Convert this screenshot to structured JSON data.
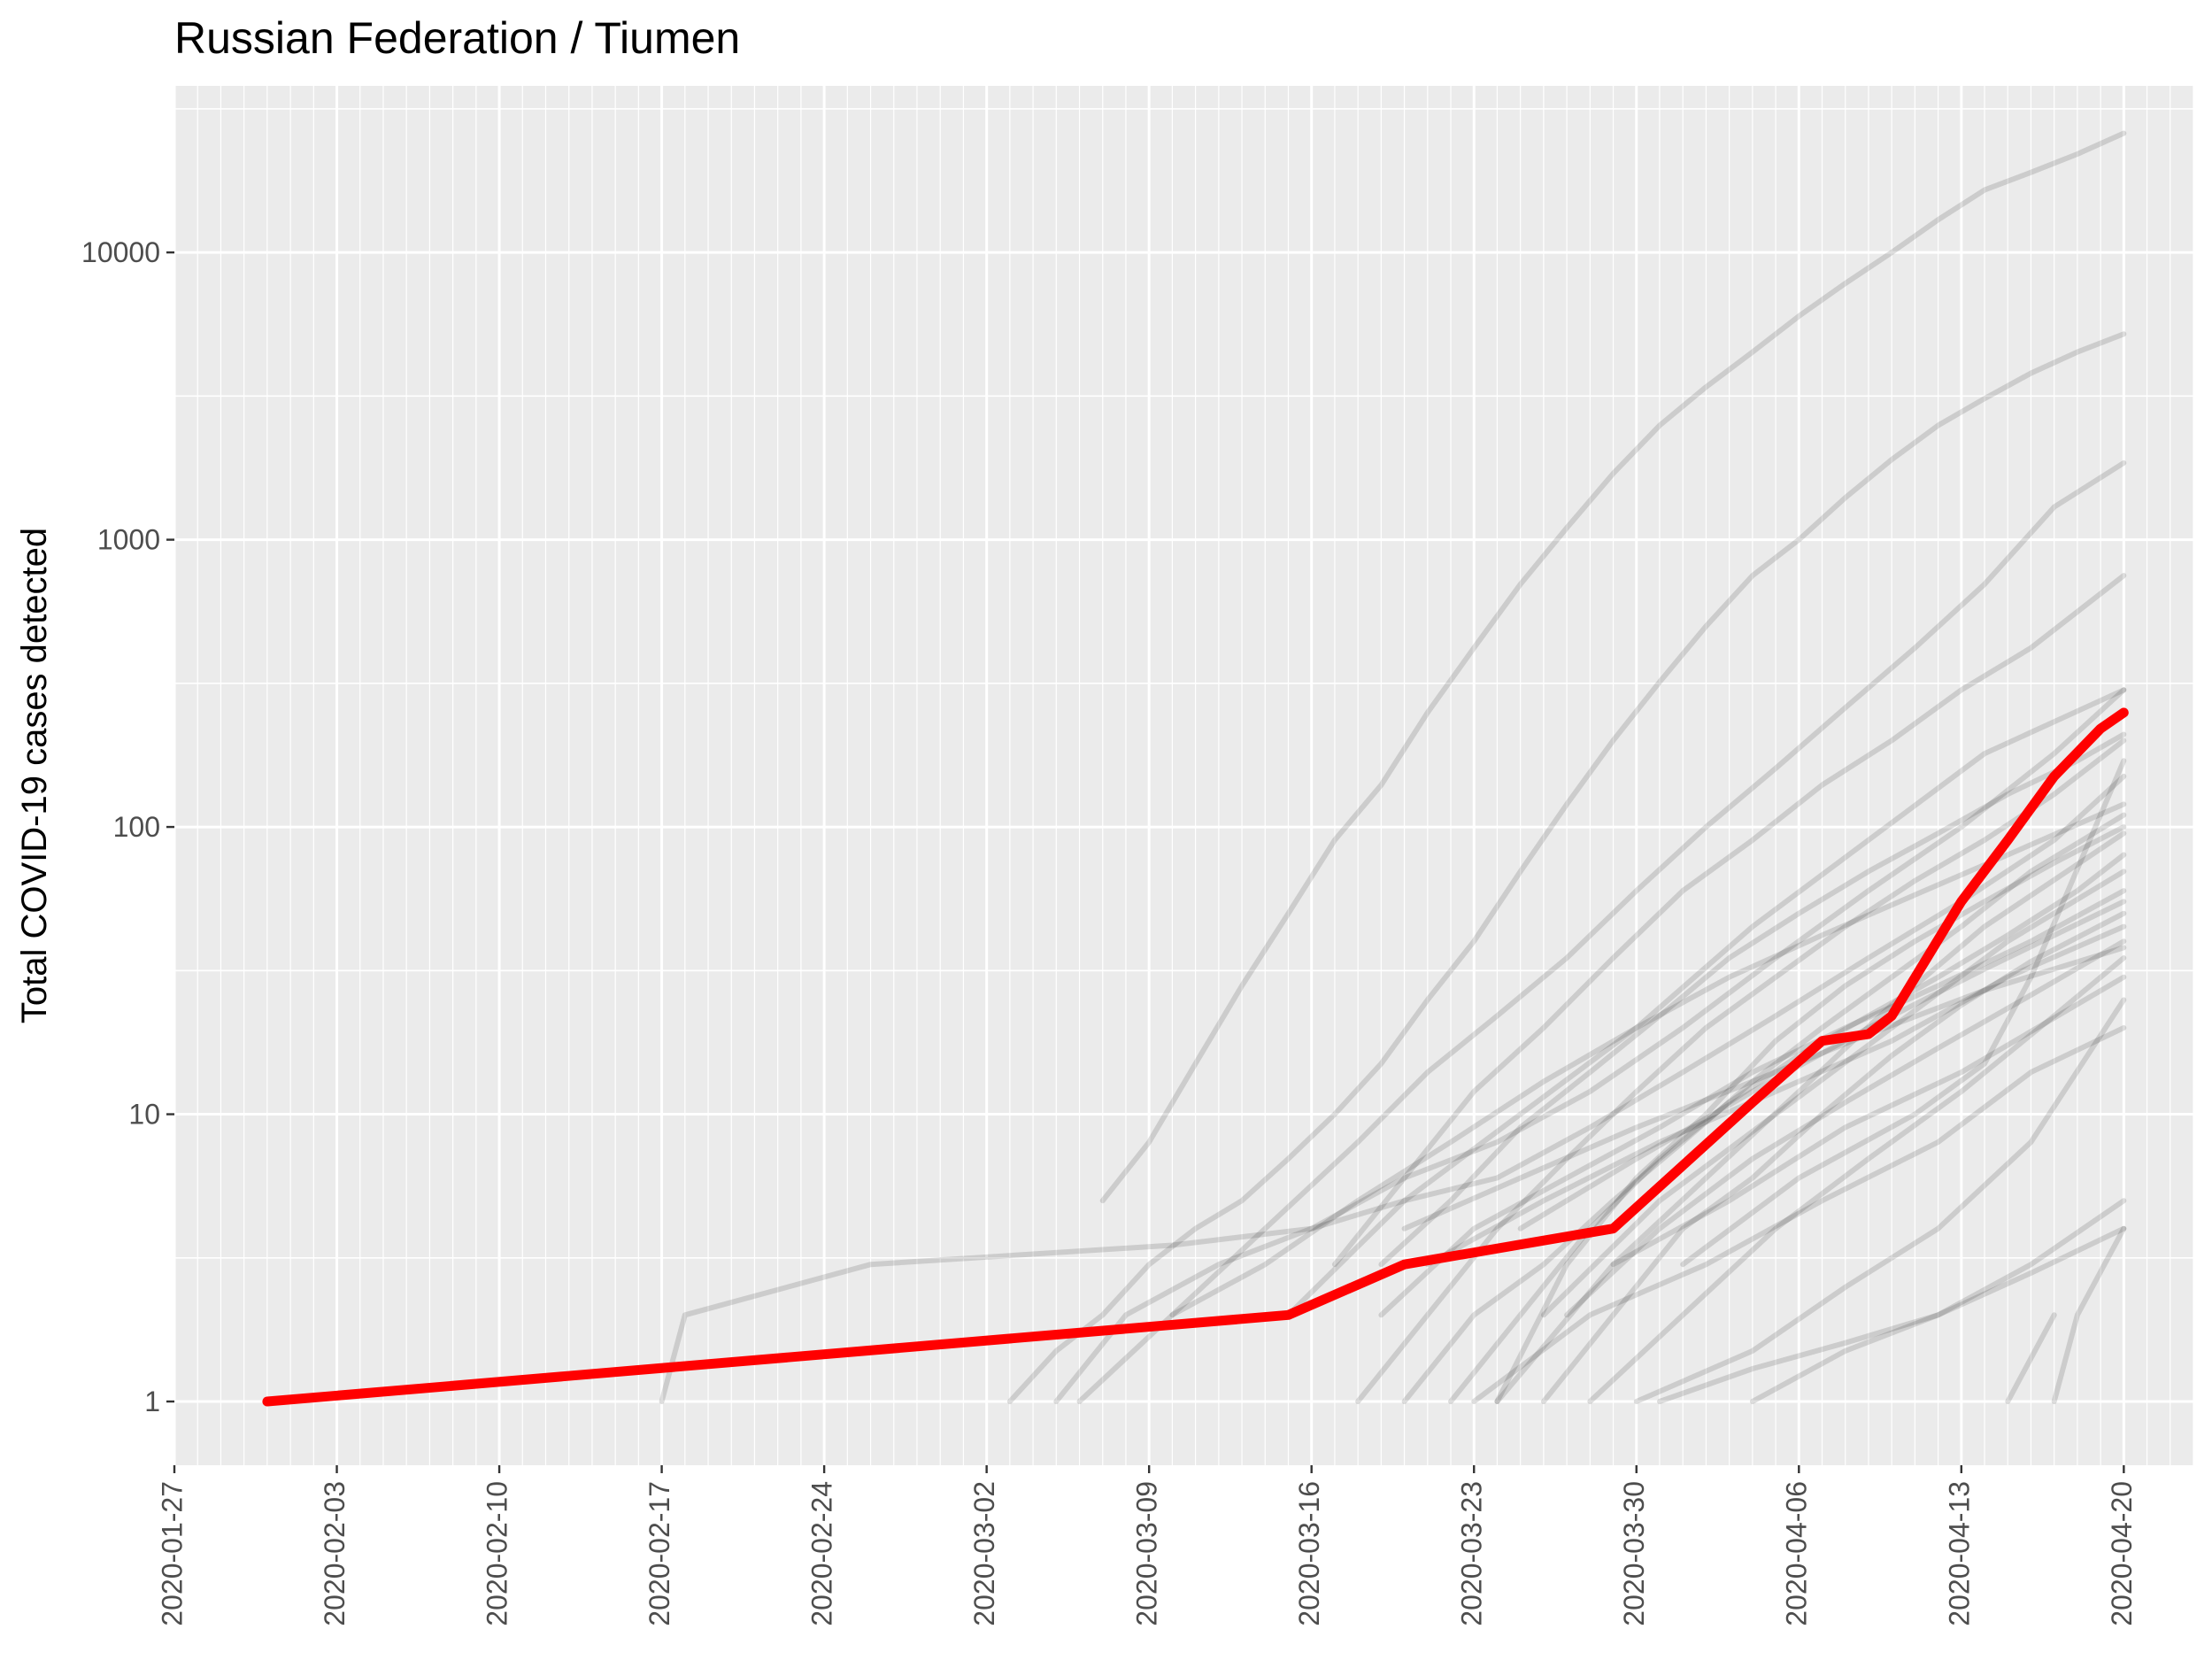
{
  "chart_data": {
    "type": "line",
    "title": "Russian Federation / Tiumen",
    "xlabel": "",
    "ylabel": "Total COVID-19 cases detected",
    "y_scale": "log10",
    "xlim": [
      "2020-01-27",
      "2020-04-23"
    ],
    "ylim": [
      0.6,
      38000
    ],
    "x_ticks": [
      "2020-01-27",
      "2020-02-03",
      "2020-02-10",
      "2020-02-17",
      "2020-02-24",
      "2020-03-02",
      "2020-03-09",
      "2020-03-16",
      "2020-03-23",
      "2020-03-30",
      "2020-04-06",
      "2020-04-13",
      "2020-04-20"
    ],
    "y_ticks": [
      1,
      10,
      100,
      1000,
      10000
    ],
    "y_tick_labels": [
      "1",
      "10",
      "100",
      "1000",
      "10000"
    ],
    "grid": true,
    "legend": "none",
    "highlight_color": "#ff0000",
    "background_color": "#ebebeb",
    "highlight_series": {
      "name": "Tiumen",
      "x": [
        "2020-01-31",
        "2020-03-15",
        "2020-03-20",
        "2020-03-29",
        "2020-04-04",
        "2020-04-07",
        "2020-04-09",
        "2020-04-10",
        "2020-04-13",
        "2020-04-15",
        "2020-04-17",
        "2020-04-19",
        "2020-04-20"
      ],
      "y": [
        1,
        2,
        3,
        4,
        11,
        18,
        19,
        22,
        55,
        90,
        150,
        220,
        250
      ]
    },
    "background_series": [
      {
        "x": [
          "2020-03-07",
          "2020-03-09",
          "2020-03-11",
          "2020-03-13",
          "2020-03-15",
          "2020-03-17",
          "2020-03-19",
          "2020-03-21",
          "2020-03-23",
          "2020-03-25",
          "2020-03-27",
          "2020-03-29",
          "2020-03-31",
          "2020-04-02",
          "2020-04-04",
          "2020-04-06",
          "2020-04-08",
          "2020-04-10",
          "2020-04-12",
          "2020-04-14",
          "2020-04-16",
          "2020-04-18",
          "2020-04-20"
        ],
        "y": [
          5,
          8,
          15,
          28,
          50,
          90,
          140,
          250,
          420,
          700,
          1100,
          1700,
          2500,
          3400,
          4500,
          6000,
          7800,
          10000,
          13000,
          16500,
          19000,
          22000,
          26000
        ]
      },
      {
        "x": [
          "2020-03-03",
          "2020-03-05",
          "2020-03-07",
          "2020-03-09",
          "2020-03-11",
          "2020-03-13",
          "2020-03-15",
          "2020-03-17",
          "2020-03-19",
          "2020-03-21",
          "2020-03-23",
          "2020-03-25",
          "2020-03-27",
          "2020-03-29",
          "2020-03-31",
          "2020-04-02",
          "2020-04-04",
          "2020-04-06",
          "2020-04-08",
          "2020-04-10",
          "2020-04-12",
          "2020-04-14",
          "2020-04-16",
          "2020-04-18",
          "2020-04-20"
        ],
        "y": [
          1,
          1.5,
          2,
          3,
          4,
          5,
          7,
          10,
          15,
          25,
          40,
          70,
          120,
          200,
          320,
          500,
          750,
          1000,
          1400,
          1900,
          2500,
          3100,
          3800,
          4500,
          5200
        ]
      },
      {
        "x": [
          "2020-03-06",
          "2020-03-10",
          "2020-03-14",
          "2020-03-18",
          "2020-03-21",
          "2020-03-24",
          "2020-03-27",
          "2020-03-30",
          "2020-04-02",
          "2020-04-05",
          "2020-04-08",
          "2020-04-11",
          "2020-04-14",
          "2020-04-17",
          "2020-04-20"
        ],
        "y": [
          1,
          2,
          4,
          8,
          14,
          22,
          35,
          60,
          100,
          160,
          260,
          420,
          700,
          1300,
          1850
        ]
      },
      {
        "x": [
          "2020-03-17",
          "2020-03-20",
          "2020-03-23",
          "2020-03-26",
          "2020-03-29",
          "2020-04-01",
          "2020-04-04",
          "2020-04-07",
          "2020-04-10",
          "2020-04-13",
          "2020-04-16",
          "2020-04-20"
        ],
        "y": [
          3,
          6,
          12,
          20,
          35,
          60,
          90,
          140,
          200,
          300,
          420,
          750
        ]
      },
      {
        "x": [
          "2020-02-17",
          "2020-02-18",
          "2020-02-26",
          "2020-03-10",
          "2020-03-16",
          "2020-03-20",
          "2020-03-24",
          "2020-03-28",
          "2020-04-01",
          "2020-04-05",
          "2020-04-09",
          "2020-04-13",
          "2020-04-17",
          "2020-04-20"
        ],
        "y": [
          1,
          2,
          3,
          3.5,
          4,
          5,
          6,
          9,
          14,
          22,
          35,
          55,
          90,
          150
        ]
      },
      {
        "x": [
          "2020-03-05",
          "2020-03-08",
          "2020-03-12",
          "2020-03-16",
          "2020-03-20",
          "2020-03-24",
          "2020-03-28",
          "2020-04-01",
          "2020-04-05",
          "2020-04-09",
          "2020-04-13",
          "2020-04-17",
          "2020-04-20"
        ],
        "y": [
          1,
          2,
          3,
          4,
          6,
          8,
          12,
          20,
          35,
          60,
          100,
          180,
          300
        ]
      },
      {
        "x": [
          "2020-03-18",
          "2020-03-21",
          "2020-03-24",
          "2020-03-27",
          "2020-03-30",
          "2020-04-02",
          "2020-04-05",
          "2020-04-08",
          "2020-04-11",
          "2020-04-14",
          "2020-04-17",
          "2020-04-20"
        ],
        "y": [
          1,
          2,
          4,
          7,
          12,
          20,
          30,
          45,
          65,
          90,
          130,
          200
        ]
      },
      {
        "x": [
          "2020-03-20",
          "2020-03-23",
          "2020-03-26",
          "2020-03-29",
          "2020-04-01",
          "2020-04-04",
          "2020-04-07",
          "2020-04-10",
          "2020-04-13",
          "2020-04-16",
          "2020-04-20"
        ],
        "y": [
          1,
          2,
          3,
          5,
          8,
          13,
          20,
          30,
          45,
          70,
          110
        ]
      },
      {
        "x": [
          "2020-03-22",
          "2020-03-25",
          "2020-03-28",
          "2020-03-31",
          "2020-04-03",
          "2020-04-06",
          "2020-04-09",
          "2020-04-12",
          "2020-04-15",
          "2020-04-18",
          "2020-04-20"
        ],
        "y": [
          1,
          2,
          4,
          7,
          11,
          16,
          22,
          30,
          42,
          60,
          80
        ]
      },
      {
        "x": [
          "2020-03-24",
          "2020-03-27",
          "2020-03-30",
          "2020-04-02",
          "2020-04-05",
          "2020-04-08",
          "2020-04-11",
          "2020-04-14",
          "2020-04-17",
          "2020-04-20"
        ],
        "y": [
          1,
          3,
          6,
          10,
          18,
          28,
          40,
          55,
          75,
          100
        ]
      },
      {
        "x": [
          "2020-03-19",
          "2020-03-23",
          "2020-03-27",
          "2020-03-31",
          "2020-04-04",
          "2020-04-08",
          "2020-04-12",
          "2020-04-16",
          "2020-04-20"
        ],
        "y": [
          2,
          4,
          6,
          9,
          14,
          20,
          28,
          40,
          60
        ]
      },
      {
        "x": [
          "2020-03-26",
          "2020-03-29",
          "2020-04-01",
          "2020-04-04",
          "2020-04-07",
          "2020-04-10",
          "2020-04-13",
          "2020-04-16",
          "2020-04-20"
        ],
        "y": [
          1,
          2,
          4,
          6,
          10,
          16,
          24,
          34,
          50
        ]
      },
      {
        "x": [
          "2020-03-28",
          "2020-04-01",
          "2020-04-05",
          "2020-04-09",
          "2020-04-13",
          "2020-04-17",
          "2020-04-20"
        ],
        "y": [
          1,
          2,
          4,
          7,
          12,
          22,
          35
        ]
      },
      {
        "x": [
          "2020-03-30",
          "2020-04-04",
          "2020-04-08",
          "2020-04-12",
          "2020-04-16",
          "2020-04-20"
        ],
        "y": [
          1,
          1.5,
          2.5,
          4,
          8,
          25
        ]
      },
      {
        "x": [
          "2020-03-21",
          "2020-03-26",
          "2020-03-31",
          "2020-04-05",
          "2020-04-10",
          "2020-04-15",
          "2020-04-20"
        ],
        "y": [
          3,
          5,
          8,
          12,
          18,
          30,
          45
        ]
      },
      {
        "x": [
          "2020-03-15",
          "2020-03-20",
          "2020-03-25",
          "2020-03-30",
          "2020-04-04",
          "2020-04-09",
          "2020-04-14",
          "2020-04-20"
        ],
        "y": [
          2,
          5,
          10,
          20,
          45,
          90,
          180,
          300
        ]
      },
      {
        "x": [
          "2020-03-27",
          "2020-03-31",
          "2020-04-04",
          "2020-04-08",
          "2020-04-12",
          "2020-04-16",
          "2020-04-20"
        ],
        "y": [
          2,
          4,
          7,
          11,
          17,
          26,
          40
        ]
      },
      {
        "x": [
          "2020-04-04",
          "2020-04-08",
          "2020-04-12",
          "2020-04-16",
          "2020-04-20"
        ],
        "y": [
          1,
          1.5,
          2,
          3,
          5
        ]
      },
      {
        "x": [
          "2020-03-31",
          "2020-04-04",
          "2020-04-08",
          "2020-04-12",
          "2020-04-16",
          "2020-04-20"
        ],
        "y": [
          1,
          1.3,
          1.6,
          2,
          2.8,
          4
        ]
      },
      {
        "x": [
          "2020-04-15",
          "2020-04-17"
        ],
        "y": [
          1,
          2
        ]
      },
      {
        "x": [
          "2020-04-17",
          "2020-04-18",
          "2020-04-20"
        ],
        "y": [
          1,
          2,
          4
        ]
      },
      {
        "x": [
          "2020-04-01",
          "2020-04-06",
          "2020-04-11",
          "2020-04-14",
          "2020-04-16",
          "2020-04-20"
        ],
        "y": [
          3,
          6,
          10,
          15,
          30,
          170
        ]
      },
      {
        "x": [
          "2020-03-23",
          "2020-03-28",
          "2020-04-02",
          "2020-04-07",
          "2020-04-12",
          "2020-04-16",
          "2020-04-20"
        ],
        "y": [
          1,
          2,
          3,
          5,
          8,
          14,
          20
        ]
      },
      {
        "x": [
          "2020-03-25",
          "2020-03-30",
          "2020-04-04",
          "2020-04-09",
          "2020-04-14",
          "2020-04-20"
        ],
        "y": [
          4,
          7,
          12,
          20,
          32,
          55
        ]
      },
      {
        "x": [
          "2020-03-29",
          "2020-04-02",
          "2020-04-06",
          "2020-04-10",
          "2020-04-14",
          "2020-04-20"
        ],
        "y": [
          3,
          6,
          12,
          24,
          45,
          95
        ]
      },
      {
        "x": [
          "2020-03-19",
          "2020-03-22",
          "2020-03-25",
          "2020-03-28",
          "2020-03-31",
          "2020-04-03",
          "2020-04-06",
          "2020-04-09",
          "2020-04-12",
          "2020-04-15",
          "2020-04-18",
          "2020-04-20"
        ],
        "y": [
          3,
          5,
          9,
          14,
          22,
          35,
          50,
          70,
          95,
          130,
          170,
          210
        ]
      },
      {
        "x": [
          "2020-03-10",
          "2020-03-14",
          "2020-03-18",
          "2020-03-22",
          "2020-03-26",
          "2020-03-30",
          "2020-04-03",
          "2020-04-07",
          "2020-04-11",
          "2020-04-15",
          "2020-04-20"
        ],
        "y": [
          2,
          3,
          5,
          8,
          13,
          20,
          30,
          42,
          58,
          80,
          120
        ]
      },
      {
        "x": [
          "2020-03-24",
          "2020-03-29",
          "2020-04-03",
          "2020-04-08",
          "2020-04-13",
          "2020-04-20"
        ],
        "y": [
          1,
          3,
          5,
          9,
          14,
          30
        ]
      },
      {
        "x": [
          "2020-03-20",
          "2020-03-25",
          "2020-03-30",
          "2020-04-04",
          "2020-04-09",
          "2020-04-14",
          "2020-04-20"
        ],
        "y": [
          4,
          6,
          9,
          13,
          19,
          27,
          38
        ]
      },
      {
        "x": [
          "2020-03-26",
          "2020-03-31",
          "2020-04-05",
          "2020-04-10",
          "2020-04-15",
          "2020-04-20"
        ],
        "y": [
          2,
          5,
          10,
          20,
          40,
          70
        ]
      }
    ]
  }
}
